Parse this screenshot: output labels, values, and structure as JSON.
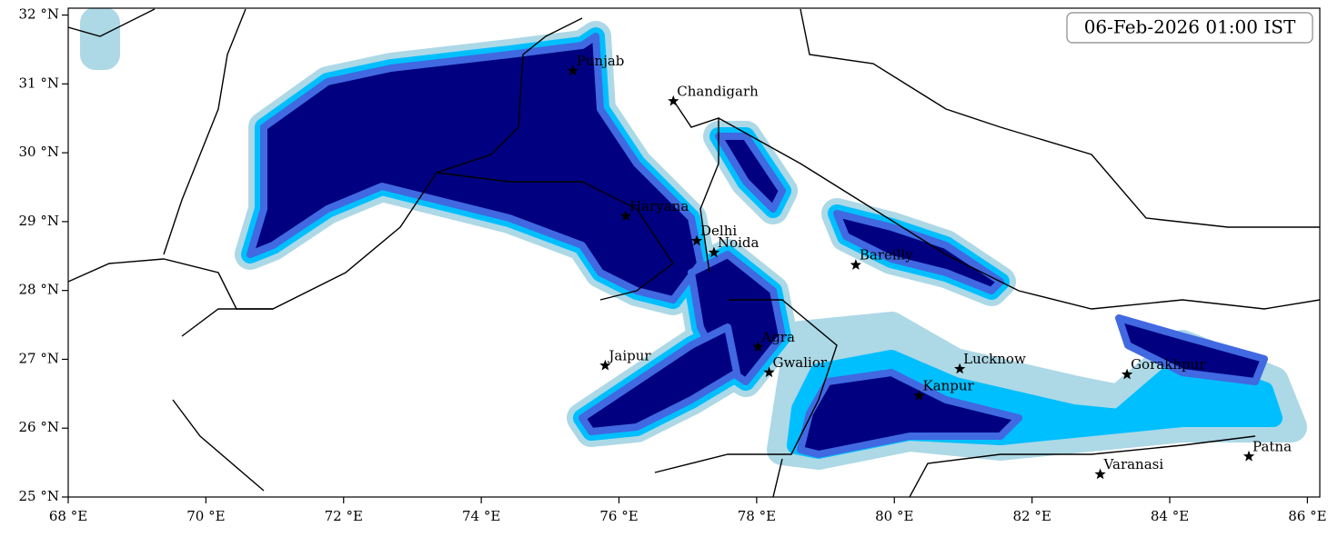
{
  "chart_data": {
    "type": "map",
    "timestamp": "06-Feb-2026 01:00 IST",
    "xlim": [
      68,
      86.18
    ],
    "ylim": [
      25,
      32.1
    ],
    "xticks": [
      {
        "value": 68,
        "label": "68 °E"
      },
      {
        "value": 70,
        "label": "70 °E"
      },
      {
        "value": 72,
        "label": "72 °E"
      },
      {
        "value": 74,
        "label": "74 °E"
      },
      {
        "value": 76,
        "label": "76 °E"
      },
      {
        "value": 78,
        "label": "78 °E"
      },
      {
        "value": 80,
        "label": "80 °E"
      },
      {
        "value": 82,
        "label": "82 °E"
      },
      {
        "value": 84,
        "label": "84 °E"
      },
      {
        "value": 86,
        "label": "86 °E"
      }
    ],
    "yticks": [
      {
        "value": 25,
        "label": "25 °N"
      },
      {
        "value": 26,
        "label": "26 °N"
      },
      {
        "value": 27,
        "label": "27 °N"
      },
      {
        "value": 28,
        "label": "28 °N"
      },
      {
        "value": 29,
        "label": "29 °N"
      },
      {
        "value": 30,
        "label": "30 °N"
      },
      {
        "value": 31,
        "label": "31 °N"
      },
      {
        "value": 32,
        "label": "32 °N"
      }
    ],
    "cities": [
      {
        "name": "Punjab",
        "lon": 75.33,
        "lat": 31.19
      },
      {
        "name": "Chandigarh",
        "lon": 76.79,
        "lat": 30.75
      },
      {
        "name": "Haryana",
        "lon": 76.1,
        "lat": 29.08
      },
      {
        "name": "Delhi",
        "lon": 77.13,
        "lat": 28.72
      },
      {
        "name": "Noida",
        "lon": 77.38,
        "lat": 28.55
      },
      {
        "name": "Bareilly",
        "lon": 79.44,
        "lat": 28.37
      },
      {
        "name": "Agra",
        "lon": 78.02,
        "lat": 27.18
      },
      {
        "name": "Jaipur",
        "lon": 75.8,
        "lat": 26.91
      },
      {
        "name": "Gwalior",
        "lon": 78.18,
        "lat": 26.81
      },
      {
        "name": "Kanpur",
        "lon": 80.36,
        "lat": 26.47
      },
      {
        "name": "Lucknow",
        "lon": 80.95,
        "lat": 26.86
      },
      {
        "name": "Gorakhpur",
        "lon": 83.38,
        "lat": 26.78
      },
      {
        "name": "Varanasi",
        "lon": 82.99,
        "lat": 25.33
      },
      {
        "name": "Patna",
        "lon": 85.15,
        "lat": 25.59
      }
    ]
  }
}
